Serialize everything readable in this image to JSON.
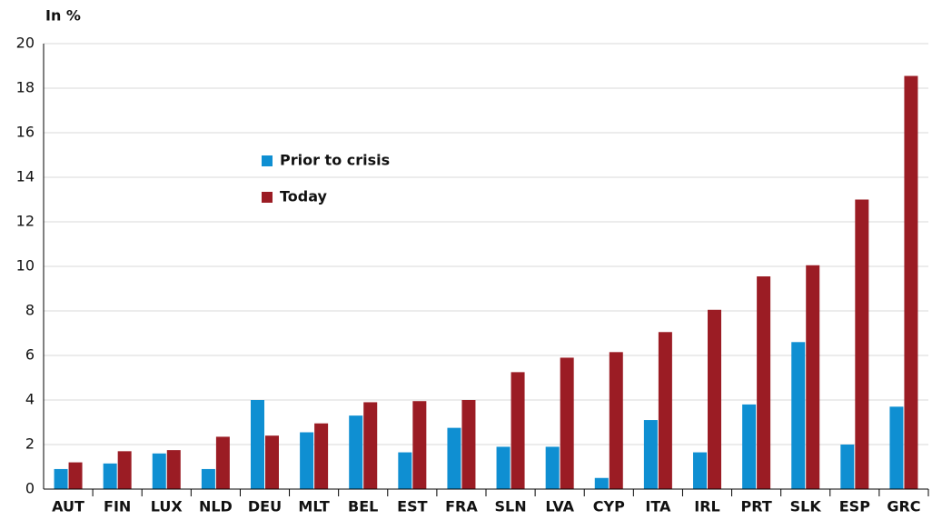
{
  "chart_data": {
    "type": "bar",
    "y_label": "In %",
    "categories": [
      "AUT",
      "FIN",
      "LUX",
      "NLD",
      "DEU",
      "MLT",
      "BEL",
      "EST",
      "FRA",
      "SLN",
      "LVA",
      "CYP",
      "ITA",
      "IRL",
      "PRT",
      "SLK",
      "ESP",
      "GRC"
    ],
    "series": [
      {
        "name": "Prior to crisis",
        "color": "#0f8fd2",
        "values": [
          0.9,
          1.15,
          1.6,
          0.9,
          4.0,
          2.55,
          3.3,
          1.65,
          2.75,
          1.9,
          1.9,
          0.5,
          3.1,
          1.65,
          3.8,
          6.6,
          2.0,
          3.7
        ]
      },
      {
        "name": "Today",
        "color": "#9b1c24",
        "values": [
          1.2,
          1.7,
          1.75,
          2.35,
          2.4,
          2.95,
          3.9,
          3.95,
          4.0,
          5.25,
          5.9,
          6.15,
          7.05,
          8.05,
          9.55,
          10.05,
          13.0,
          18.55
        ]
      }
    ],
    "ylim": [
      0,
      20
    ],
    "yticks": [
      0,
      2,
      4,
      6,
      8,
      10,
      12,
      14,
      16,
      18,
      20
    ],
    "grid": true
  }
}
